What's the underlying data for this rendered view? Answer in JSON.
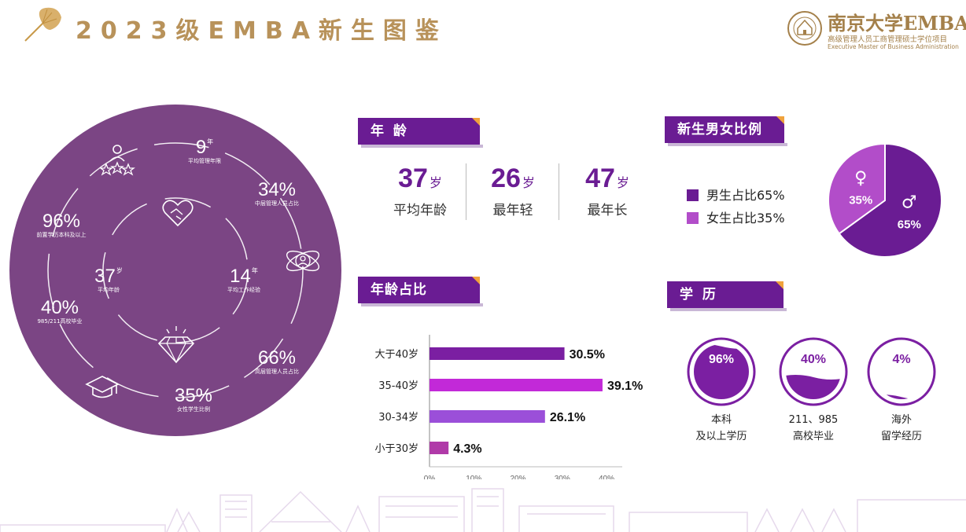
{
  "header": {
    "title": "2023级EMBA新生图鉴",
    "brand_cn": "南京大学EMBA",
    "brand_sub": "高级管理人员工商管理硕士学位项目",
    "brand_en": "Executive Master of Business Administration"
  },
  "circle_stats": [
    {
      "num": "9",
      "unit": "年",
      "label": "平均管理年限"
    },
    {
      "num": "34%",
      "unit": "",
      "label": "中层管理人员占比"
    },
    {
      "num": "96%",
      "unit": "",
      "label": "前置学历本科及以上"
    },
    {
      "num": "37",
      "unit": "岁",
      "label": "平均年龄"
    },
    {
      "num": "14",
      "unit": "年",
      "label": "平均工作经验"
    },
    {
      "num": "40%",
      "unit": "",
      "label": "985/211高校毕业"
    },
    {
      "num": "66%",
      "unit": "",
      "label": "高层管理人员占比"
    },
    {
      "num": "35%",
      "unit": "",
      "label": "女性学生比例"
    }
  ],
  "age_section": {
    "title": "年 龄",
    "items": [
      {
        "value": "37",
        "unit": "岁",
        "label": "平均年龄"
      },
      {
        "value": "26",
        "unit": "岁",
        "label": "最年轻"
      },
      {
        "value": "47",
        "unit": "岁",
        "label": "最年长"
      }
    ]
  },
  "gender_section": {
    "title": "新生男女比例",
    "legend": [
      {
        "label": "男生占比65%",
        "color": "#6a1c93"
      },
      {
        "label": "女生占比35%",
        "color": "#b24dc9"
      }
    ]
  },
  "age_ratio_section": {
    "title": "年龄占比"
  },
  "education_section": {
    "title": "学 历",
    "items": [
      {
        "percent": 96,
        "text": "96%",
        "label_1": "本科",
        "label_2": "及以上学历"
      },
      {
        "percent": 40,
        "text": "40%",
        "label_1": "211、985",
        "label_2": "高校毕业"
      },
      {
        "percent": 4,
        "text": "4%",
        "label_1": "海外",
        "label_2": "留学经历"
      }
    ]
  },
  "chart_data": [
    {
      "type": "bar",
      "orientation": "horizontal",
      "categories": [
        "大于40岁",
        "35-40岁",
        "30-34岁",
        "小于30岁"
      ],
      "values": [
        30.5,
        39.1,
        26.1,
        4.3
      ],
      "value_labels": [
        "30.5%",
        "39.1%",
        "26.1%",
        "4.3%"
      ],
      "colors": [
        "#7b1fa2",
        "#c229d8",
        "#9b4fd9",
        "#b03aa8"
      ],
      "xlim": [
        0,
        40
      ],
      "xticks": [
        "0%",
        "10%",
        "20%",
        "30%",
        "40%"
      ],
      "title": "",
      "xlabel": "",
      "ylabel": ""
    },
    {
      "type": "pie",
      "labels": [
        "♂",
        "♀"
      ],
      "values": [
        65,
        35
      ],
      "value_labels": [
        "65%",
        "35%"
      ],
      "colors": [
        "#6a1c93",
        "#b24dc9"
      ]
    }
  ]
}
